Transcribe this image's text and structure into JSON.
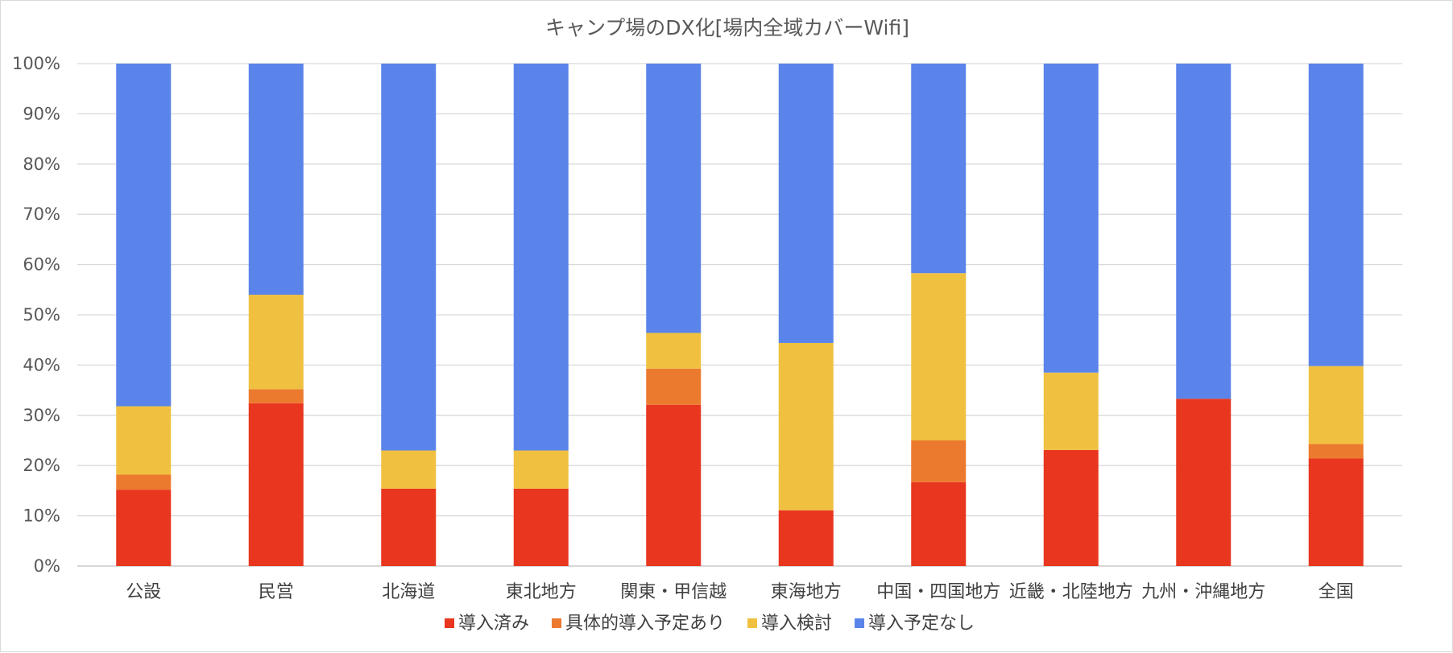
{
  "chart_data": {
    "type": "bar",
    "stacked": true,
    "normalized": true,
    "title": "キャンプ場のDX化[場内全域カバーWifi]",
    "categories": [
      "公設",
      "民営",
      "北海道",
      "東北地方",
      "関東・甲信越",
      "東海地方",
      "中国・四国地方",
      "近畿・北陸地方",
      "九州・沖縄地方",
      "全国"
    ],
    "series": [
      {
        "name": "導入済み",
        "color": "#e8361f",
        "values": [
          15.2,
          32.4,
          15.4,
          15.4,
          32.1,
          11.1,
          16.7,
          23.1,
          33.3,
          21.4
        ]
      },
      {
        "name": "具体的導入予定あり",
        "color": "#ec7a2e",
        "values": [
          3.0,
          2.8,
          0,
          0,
          7.2,
          0,
          8.3,
          0,
          0,
          2.9
        ]
      },
      {
        "name": "導入検討",
        "color": "#f0c040",
        "values": [
          13.6,
          18.8,
          7.6,
          7.6,
          7.1,
          33.3,
          33.3,
          15.4,
          0,
          15.5
        ]
      },
      {
        "name": "導入予定なし",
        "color": "#5a84ea",
        "values": [
          68.2,
          46.0,
          77.0,
          77.0,
          53.6,
          55.6,
          41.7,
          61.5,
          66.7,
          60.2
        ]
      }
    ],
    "ylim": [
      0,
      100
    ],
    "yticks": [
      "0%",
      "10%",
      "20%",
      "30%",
      "40%",
      "50%",
      "60%",
      "70%",
      "80%",
      "90%",
      "100%"
    ],
    "grid": true,
    "legend": "bottom"
  }
}
